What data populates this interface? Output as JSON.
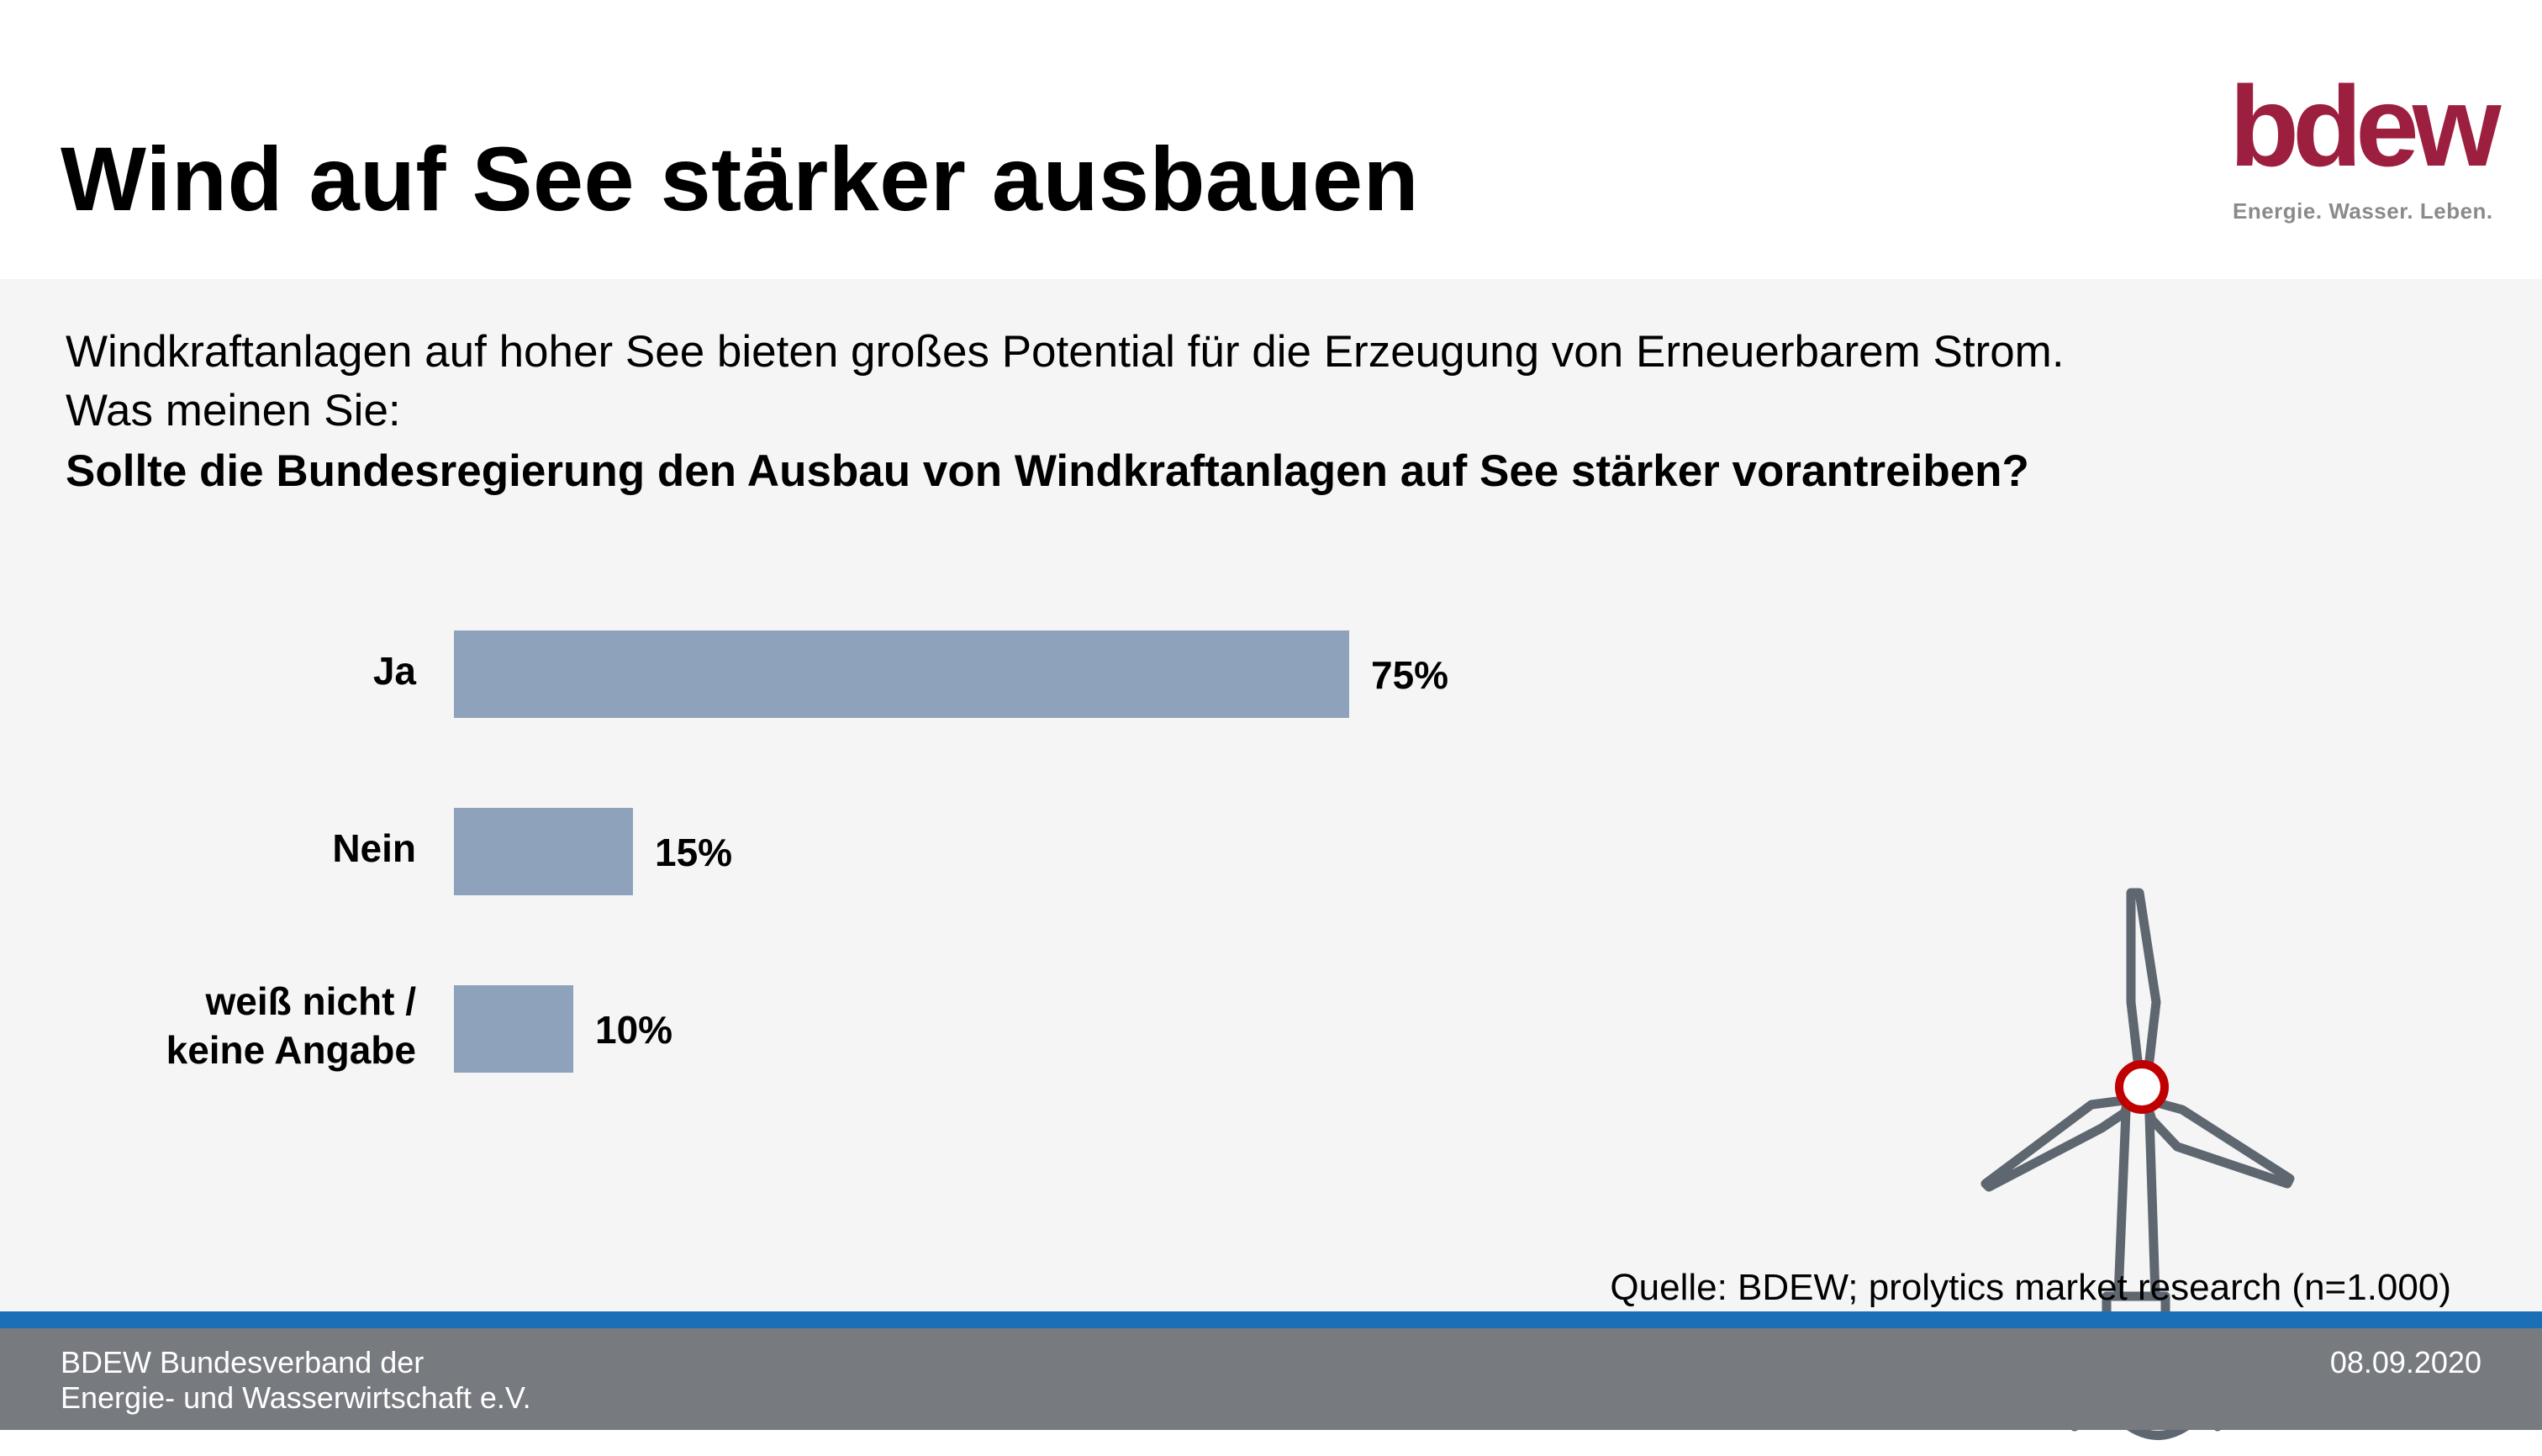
{
  "title": "Wind auf See stärker ausbauen",
  "logo": {
    "word": "bdew",
    "tagline": "Energie. Wasser. Leben."
  },
  "question": {
    "line1": "Windkraftanlagen auf hoher See bieten großes Potential für die Erzeugung von Erneuerbarem Strom.",
    "line2": "Was meinen Sie:",
    "line3": "Sollte die Bundesregierung den Ausbau von Windkraftanlagen auf See stärker vorantreiben?"
  },
  "chart_data": {
    "type": "bar",
    "orientation": "horizontal",
    "categories": [
      "Ja",
      "Nein",
      "weiß nicht / keine Angabe"
    ],
    "category_lines": [
      [
        "Ja"
      ],
      [
        "Nein"
      ],
      [
        "weiß nicht /",
        "keine Angabe"
      ]
    ],
    "values": [
      75,
      15,
      10
    ],
    "value_labels": [
      "75%",
      "15%",
      "10%"
    ],
    "xlim": [
      0,
      100
    ],
    "title": "",
    "xlabel": "",
    "ylabel": "",
    "grid": false,
    "legend": "none",
    "bar_color": "#8ea2bc"
  },
  "source": "Quelle: BDEW; prolytics market research (n=1.000)",
  "footer": {
    "org_line1": "BDEW Bundesverband der",
    "org_line2": "Energie- und Wasserwirtschaft e.V.",
    "date": "08.09.2020"
  },
  "colors": {
    "accent": "#9d1f3f",
    "bar": "#8ea2bc",
    "footer_bg": "#777a7f",
    "blue_line": "#1b6fb5",
    "turbine": "#5e6670",
    "hub": "#c00000"
  },
  "icons": {
    "illustration": "wind-turbine-icon"
  }
}
